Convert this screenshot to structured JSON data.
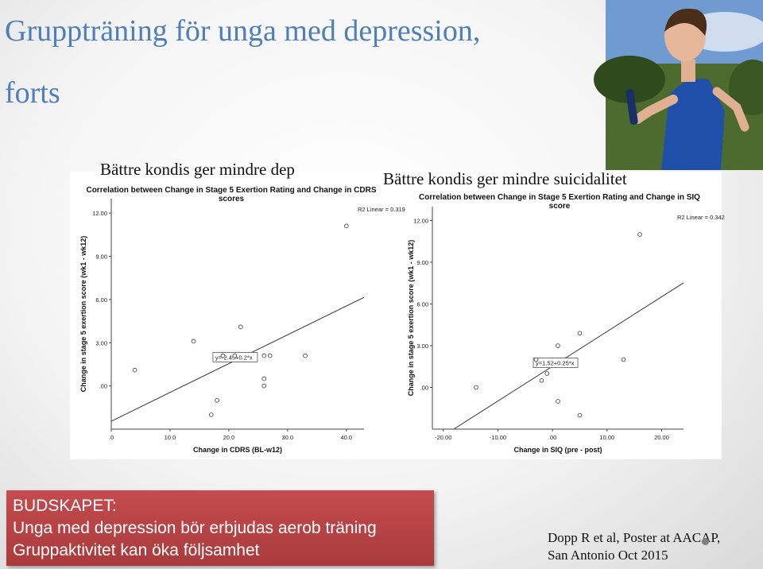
{
  "slide": {
    "title_line1": "Gruppträning för unga med depression,",
    "title_line2": "forts",
    "caption_left": "Bättre kondis ger mindre dep",
    "caption_right": "Bättre kondis ger mindre suicidalitet",
    "summary": {
      "line1": "BUDSKAPET:",
      "line2": "Unga med depression bör erbjudas aerob träning",
      "line3": "Gruppaktivitet kan öka följsamhet"
    },
    "reference": {
      "line1": "Dopp R et al, Poster at AACAP,",
      "line2": "San Antonio Oct 2015"
    },
    "colors": {
      "title": "#4f7fb8",
      "summary_bg": "#b24244",
      "accent": "#c34c4e"
    }
  },
  "chart_data": [
    {
      "type": "scatter",
      "title": "Correlation between Change in Stage 5 Exertion Rating and Change in CDRS scores",
      "title_lines": [
        "Correlation between Change in Stage 5 Exertion Rating and Change in CDRS",
        "scores"
      ],
      "xlabel": "Change in CDRS (BL-w12)",
      "ylabel": "Change in stage 5 exertion score (wk1 - wk12)",
      "xlim": [
        0,
        43
      ],
      "ylim": [
        -3,
        13
      ],
      "xticks": [
        0,
        10,
        20,
        30,
        40
      ],
      "xtick_labels": [
        ".0",
        "10.0",
        "20.0",
        "30.0",
        "40.0"
      ],
      "yticks": [
        0,
        3,
        6,
        9,
        12
      ],
      "ytick_labels": [
        ".00",
        "3.00",
        "6.00",
        "9.00",
        "12.00"
      ],
      "r2_label": "R2 Linear = 0.319",
      "equation": "y=-2.45+0.2*x",
      "fit": {
        "intercept": -2.45,
        "slope": 0.2
      },
      "points": [
        {
          "x": 4,
          "y": 1.1
        },
        {
          "x": 14,
          "y": 3.1
        },
        {
          "x": 17,
          "y": -2
        },
        {
          "x": 18,
          "y": -1
        },
        {
          "x": 19,
          "y": 2.1
        },
        {
          "x": 21,
          "y": 2.1
        },
        {
          "x": 22,
          "y": 4.1
        },
        {
          "x": 26,
          "y": 2.1
        },
        {
          "x": 26,
          "y": 0.5
        },
        {
          "x": 26,
          "y": 0
        },
        {
          "x": 27,
          "y": 2.1
        },
        {
          "x": 33,
          "y": 2.1
        },
        {
          "x": 40,
          "y": 11.1
        }
      ],
      "grid": false
    },
    {
      "type": "scatter",
      "title": "Correlation between Change in Stage 5 Exertion Rating and Change in SIQ score",
      "title_lines": [
        "Correlation between Change in Stage 5 Exertion Rating and Change in SIQ",
        "score"
      ],
      "xlabel": "Change in SIQ (pre - post)",
      "ylabel": "Change in stage 5 exertion score (wk1 - wk12)",
      "xlim": [
        -22,
        24
      ],
      "ylim": [
        -3,
        13
      ],
      "xticks": [
        -20,
        -10,
        0,
        10,
        20
      ],
      "xtick_labels": [
        "-20.00",
        "-10.00",
        ".00",
        "10.00",
        "20.00"
      ],
      "yticks": [
        0,
        3,
        6,
        9,
        12
      ],
      "ytick_labels": [
        ".00",
        "3.00",
        "6.00",
        "9.00",
        "12.00"
      ],
      "r2_label": "R2 Linear = 0.342",
      "equation": "y=1.52+0.25*x",
      "fit": {
        "intercept": 1.52,
        "slope": 0.25
      },
      "points": [
        {
          "x": -14,
          "y": 0
        },
        {
          "x": -3,
          "y": 2
        },
        {
          "x": -2,
          "y": 0.5
        },
        {
          "x": -1,
          "y": 1
        },
        {
          "x": 1,
          "y": 3
        },
        {
          "x": 1,
          "y": -1
        },
        {
          "x": 5,
          "y": 3.9
        },
        {
          "x": 5,
          "y": -2
        },
        {
          "x": 13,
          "y": 2
        },
        {
          "x": 16,
          "y": 11
        }
      ],
      "grid": false
    }
  ]
}
